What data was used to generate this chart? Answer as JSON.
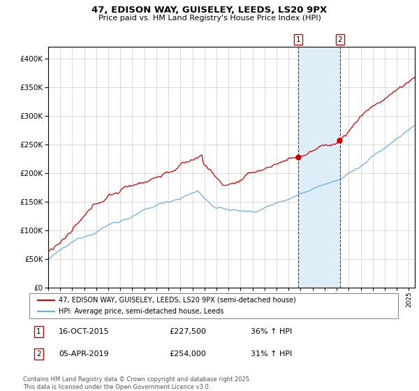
{
  "title": "47, EDISON WAY, GUISELEY, LEEDS, LS20 9PX",
  "subtitle": "Price paid vs. HM Land Registry's House Price Index (HPI)",
  "ylim": [
    0,
    420000
  ],
  "xlim_start": 1995.0,
  "xlim_end": 2025.5,
  "transaction1_date": "16-OCT-2015",
  "transaction1_price": 227500,
  "transaction1_hpi": "36% ↑ HPI",
  "transaction1_year": 2015.79,
  "transaction2_date": "05-APR-2019",
  "transaction2_price": 254000,
  "transaction2_hpi": "31% ↑ HPI",
  "transaction2_year": 2019.27,
  "legend_label1": "47, EDISON WAY, GUISELEY, LEEDS, LS20 9PX (semi-detached house)",
  "legend_label2": "HPI: Average price, semi-detached house, Leeds",
  "footer": "Contains HM Land Registry data © Crown copyright and database right 2025.\nThis data is licensed under the Open Government Licence v3.0.",
  "line1_color": "#cc0000",
  "line2_color": "#6aace6",
  "shade_color": "#ddeef8",
  "vline_color": "#cc0000",
  "background_color": "#ffffff",
  "grid_color": "#cccccc"
}
